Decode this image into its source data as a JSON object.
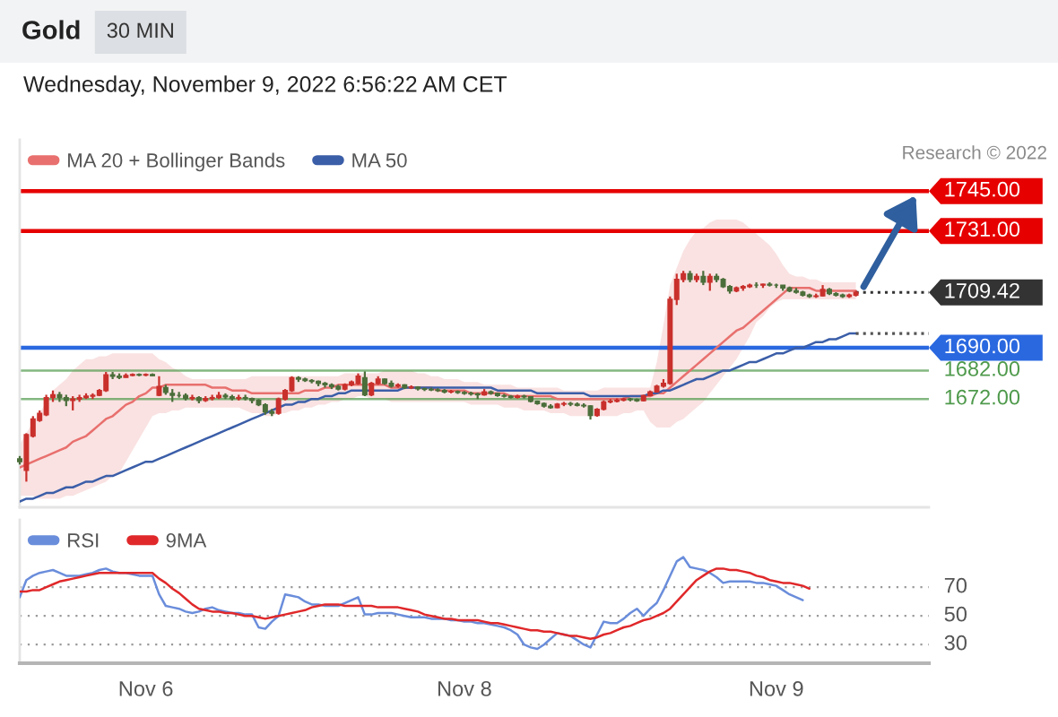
{
  "chart_data": [
    {
      "type": "candlestick",
      "title": "Gold",
      "subtitle": "Wednesday, November 9, 2022 6:56:22 AM CET",
      "annotations": [
        "30 MIN",
        "Research © 2022"
      ],
      "categories": [
        null,
        null,
        null,
        null,
        null,
        null,
        null,
        null,
        null,
        null,
        null,
        null,
        null,
        null,
        null,
        null,
        null,
        null,
        null,
        null,
        null,
        null,
        null,
        null,
        null,
        null,
        null,
        null,
        null,
        null,
        null,
        null,
        null,
        null,
        null,
        null,
        null,
        null,
        null,
        null,
        null,
        null,
        null,
        null,
        null,
        null,
        null,
        null,
        null,
        null,
        null,
        null,
        null,
        null,
        null,
        null,
        null,
        null,
        null,
        null,
        null,
        null,
        null,
        null,
        null,
        null,
        null,
        null,
        null,
        null,
        null,
        null,
        null,
        null,
        null,
        null,
        null,
        null,
        null,
        null,
        null,
        null,
        null,
        null,
        null,
        null,
        null,
        null,
        null,
        null,
        null,
        null,
        null,
        null,
        null,
        null,
        null,
        null,
        null,
        null,
        null,
        null,
        null,
        null,
        null,
        null,
        null,
        null,
        null,
        null,
        null,
        null,
        null,
        null,
        null,
        null,
        null,
        null,
        null,
        null,
        null,
        null,
        null,
        null,
        null,
        null,
        null,
        null,
        null,
        null,
        null,
        null,
        null,
        null,
        null,
        null,
        null,
        null
      ],
      "ohlc": [
        [
          1651,
          1652,
          1649,
          1650
        ],
        [
          1647,
          1660,
          1643,
          1659.5
        ],
        [
          1659,
          1666,
          1658.5,
          1665
        ],
        [
          1664.5,
          1668,
          1664,
          1667
        ],
        [
          1666.5,
          1673.5,
          1666,
          1672.5
        ],
        [
          1672.5,
          1675,
          1671,
          1673.5
        ],
        [
          1673.5,
          1674.5,
          1671,
          1672.5
        ],
        [
          1672.5,
          1673.5,
          1669.5,
          1671.5
        ],
        [
          1671.5,
          1673,
          1668,
          1672
        ],
        [
          1672,
          1673.5,
          1671,
          1672.5
        ],
        [
          1672.5,
          1674,
          1672,
          1673
        ],
        [
          1673,
          1674,
          1672,
          1673.3
        ],
        [
          1673.3,
          1675.5,
          1673,
          1675
        ],
        [
          1675,
          1681.5,
          1674.5,
          1680.5
        ],
        [
          1680.5,
          1681.5,
          1679,
          1680
        ],
        [
          1680,
          1681,
          1679,
          1679.6
        ],
        [
          1679.6,
          1681,
          1679.5,
          1680.3
        ],
        [
          1680.3,
          1681,
          1680,
          1680.6
        ],
        [
          1680.6,
          1681,
          1680,
          1680.4
        ],
        [
          1680.4,
          1681,
          1680,
          1680.6
        ],
        [
          1680.6,
          1681,
          1680,
          1680.2
        ],
        [
          1673.3,
          1680,
          1673,
          1676.4
        ],
        [
          1676,
          1677,
          1673.5,
          1674.3
        ],
        [
          1674,
          1675.5,
          1671,
          1673.3
        ],
        [
          1673.3,
          1674.5,
          1672.5,
          1673.3
        ],
        [
          1673.3,
          1674,
          1671.5,
          1672.2
        ],
        [
          1672.2,
          1673.5,
          1671.5,
          1672.5
        ],
        [
          1672.5,
          1673,
          1670.5,
          1671.5
        ],
        [
          1671.5,
          1673,
          1671,
          1672.2
        ],
        [
          1672.2,
          1673.5,
          1671.5,
          1672.5
        ],
        [
          1672.5,
          1674.5,
          1672,
          1673.3
        ],
        [
          1673.3,
          1674,
          1672,
          1672.8
        ],
        [
          1672.8,
          1673.5,
          1671.5,
          1672.2
        ],
        [
          1672.2,
          1673.5,
          1671.5,
          1672.5
        ],
        [
          1672.5,
          1673.5,
          1671.5,
          1672.2
        ],
        [
          1672.2,
          1672.5,
          1670.5,
          1671.5
        ],
        [
          1671.5,
          1672,
          1669.5,
          1670
        ],
        [
          1670,
          1670.5,
          1666.5,
          1667.5
        ],
        [
          1667.5,
          1668.5,
          1666,
          1667
        ],
        [
          1667,
          1672.5,
          1666.5,
          1672
        ],
        [
          1672,
          1675.5,
          1671.5,
          1675
        ],
        [
          1675,
          1680,
          1674.5,
          1679.5
        ],
        [
          1679.5,
          1680,
          1678,
          1679
        ],
        [
          1679,
          1679.5,
          1678,
          1678.5
        ],
        [
          1678.5,
          1679,
          1677.5,
          1678.2
        ],
        [
          1678.2,
          1678.5,
          1676.5,
          1677.5
        ],
        [
          1677.5,
          1678,
          1676,
          1677
        ],
        [
          1677,
          1677.5,
          1675.5,
          1676.4
        ],
        [
          1676.4,
          1677,
          1675,
          1675.5
        ],
        [
          1675.5,
          1677.5,
          1675,
          1677
        ],
        [
          1677,
          1678.5,
          1676.5,
          1678
        ],
        [
          1677.5,
          1681,
          1677,
          1680
        ],
        [
          1679.5,
          1681.7,
          1673,
          1673.5
        ],
        [
          1673.5,
          1678,
          1673,
          1677.5
        ],
        [
          1677.5,
          1680,
          1677,
          1679
        ],
        [
          1679,
          1679.2,
          1677,
          1677.5
        ],
        [
          1677.5,
          1678.5,
          1676,
          1676.5
        ],
        [
          1676.5,
          1677.5,
          1676,
          1677
        ],
        [
          1677,
          1677.2,
          1675.5,
          1676
        ],
        [
          1676,
          1676.8,
          1675.5,
          1676.2
        ],
        [
          1676.2,
          1676.5,
          1675,
          1675.6
        ],
        [
          1675.6,
          1676,
          1674.8,
          1675.4
        ],
        [
          1675.4,
          1676,
          1674.8,
          1675.2
        ],
        [
          1675.2,
          1675.8,
          1674.5,
          1675
        ],
        [
          1675,
          1675.5,
          1674,
          1674.5
        ],
        [
          1674.5,
          1675.2,
          1674,
          1674.6
        ],
        [
          1674.6,
          1675,
          1673.8,
          1674.3
        ],
        [
          1674.3,
          1674.8,
          1673.5,
          1674
        ],
        [
          1674,
          1674.6,
          1673.2,
          1673.8
        ],
        [
          1673.8,
          1674.2,
          1672,
          1673.5
        ],
        [
          1673.5,
          1675.5,
          1673.2,
          1674.5
        ],
        [
          1674.5,
          1675,
          1673.5,
          1674
        ],
        [
          1674,
          1674.2,
          1672.8,
          1673.2
        ],
        [
          1673.2,
          1673.8,
          1672.5,
          1673
        ],
        [
          1673,
          1673.4,
          1672.2,
          1672.6
        ],
        [
          1672.6,
          1673.5,
          1672.2,
          1673
        ],
        [
          1673,
          1673.5,
          1672.2,
          1672.8
        ],
        [
          1672.8,
          1673,
          1670.8,
          1671.2
        ],
        [
          1671.2,
          1671.5,
          1670,
          1670.4
        ],
        [
          1670.4,
          1670.8,
          1669,
          1669.5
        ],
        [
          1669.5,
          1670.2,
          1668.6,
          1669
        ],
        [
          1669,
          1670.6,
          1668.8,
          1670.2
        ],
        [
          1670.2,
          1671,
          1669.5,
          1670.4
        ],
        [
          1670.4,
          1671,
          1669.5,
          1670.2
        ],
        [
          1670.2,
          1670.8,
          1669.4,
          1669.8
        ],
        [
          1669.8,
          1670.5,
          1669,
          1669.6
        ],
        [
          1669.6,
          1669.8,
          1664.8,
          1666.2
        ],
        [
          1666.2,
          1668.8,
          1665.8,
          1668.4
        ],
        [
          1668.4,
          1671.5,
          1668,
          1671
        ],
        [
          1671,
          1672,
          1670.5,
          1671.2
        ],
        [
          1671.2,
          1672.2,
          1670.8,
          1671.6
        ],
        [
          1671.6,
          1672.5,
          1671.2,
          1672
        ],
        [
          1672,
          1672.4,
          1671.2,
          1671.8
        ],
        [
          1671.8,
          1672.2,
          1671,
          1671.4
        ],
        [
          1671.4,
          1673.5,
          1671.2,
          1673.2
        ],
        [
          1673.2,
          1675,
          1673,
          1674.5
        ],
        [
          1674.5,
          1677,
          1674.2,
          1676.5
        ],
        [
          1676.5,
          1679,
          1676,
          1677.5
        ],
        [
          1677.5,
          1708,
          1677,
          1707
        ],
        [
          1707,
          1716,
          1705,
          1714
        ],
        [
          1714,
          1717,
          1713,
          1716
        ],
        [
          1716,
          1717,
          1713,
          1714
        ],
        [
          1714,
          1716,
          1713,
          1715
        ],
        [
          1715,
          1717,
          1712,
          1713
        ],
        [
          1713,
          1716,
          1710,
          1715
        ],
        [
          1715,
          1716,
          1713,
          1714
        ],
        [
          1714,
          1714.5,
          1711,
          1711.5
        ],
        [
          1711.5,
          1712,
          1709,
          1710
        ],
        [
          1710,
          1711.5,
          1709.5,
          1711
        ],
        [
          1711,
          1712,
          1710,
          1711.5
        ],
        [
          1711.5,
          1712.5,
          1711,
          1712
        ],
        [
          1712,
          1713,
          1711,
          1712
        ],
        [
          1712,
          1712.5,
          1711,
          1712.3
        ],
        [
          1712.3,
          1713,
          1711.5,
          1712
        ],
        [
          1712,
          1712.5,
          1711,
          1712
        ],
        [
          1712,
          1712,
          1710,
          1711
        ],
        [
          1711,
          1711.5,
          1709.5,
          1710
        ],
        [
          1710,
          1711,
          1709,
          1709.5
        ],
        [
          1709.5,
          1710,
          1708,
          1708.5
        ],
        [
          1708.5,
          1709,
          1707.5,
          1708
        ],
        [
          1708,
          1709,
          1707.5,
          1708.2
        ],
        [
          1708.2,
          1712,
          1708,
          1710.5
        ],
        [
          1710.5,
          1711,
          1708.5,
          1709
        ],
        [
          1709,
          1709.5,
          1708,
          1708.5
        ],
        [
          1708.5,
          1709,
          1707.5,
          1708
        ],
        [
          1708,
          1709,
          1707.5,
          1708.5
        ],
        [
          1708.5,
          1710,
          1708,
          1709.42
        ],
        null,
        null,
        null,
        null,
        null,
        null,
        null,
        null,
        null,
        null,
        null
      ],
      "colors": [
        "#4b6e3a",
        "#c9302c",
        "#c9302c",
        "#c9302c",
        "#c9302c",
        "#c9302c",
        "#4b6e3a",
        "#4b6e3a",
        "#c9302c",
        "#c9302c",
        "#c9302c",
        "#c9302c",
        "#c9302c",
        "#c9302c",
        "#4b6e3a",
        "#4b6e3a",
        "#c9302c",
        "#c9302c",
        "#4b6e3a",
        "#c9302c",
        "#4b6e3a",
        "#c9302c",
        "#4b6e3a",
        "#4b6e3a",
        "#4b6e3a",
        "#4b6e3a",
        "#c9302c",
        "#4b6e3a",
        "#c9302c",
        "#c9302c",
        "#c9302c",
        "#4b6e3a",
        "#4b6e3a",
        "#c9302c",
        "#4b6e3a",
        "#4b6e3a",
        "#4b6e3a",
        "#4b6e3a",
        "#4b6e3a",
        "#c9302c",
        "#c9302c",
        "#c9302c",
        "#4b6e3a",
        "#4b6e3a",
        "#4b6e3a",
        "#4b6e3a",
        "#4b6e3a",
        "#4b6e3a",
        "#4b6e3a",
        "#c9302c",
        "#c9302c",
        "#c9302c",
        "#4b6e3a",
        "#c9302c",
        "#c9302c",
        "#4b6e3a",
        "#4b6e3a",
        "#c9302c",
        "#4b6e3a",
        "#c9302c",
        "#4b6e3a",
        "#4b6e3a",
        "#4b6e3a",
        "#4b6e3a",
        "#4b6e3a",
        "#c9302c",
        "#4b6e3a",
        "#4b6e3a",
        "#4b6e3a",
        "#4b6e3a",
        "#c9302c",
        "#4b6e3a",
        "#4b6e3a",
        "#4b6e3a",
        "#4b6e3a",
        "#c9302c",
        "#4b6e3a",
        "#4b6e3a",
        "#4b6e3a",
        "#4b6e3a",
        "#4b6e3a",
        "#c9302c",
        "#c9302c",
        "#4b6e3a",
        "#4b6e3a",
        "#4b6e3a",
        "#4b6e3a",
        "#c9302c",
        "#c9302c",
        "#c9302c",
        "#c9302c",
        "#c9302c",
        "#4b6e3a",
        "#4b6e3a",
        "#c9302c",
        "#c9302c",
        "#c9302c",
        "#c9302c",
        "#c9302c",
        "#c9302c",
        "#c9302c",
        "#4b6e3a",
        "#c9302c",
        "#4b6e3a",
        "#c9302c",
        "#4b6e3a",
        "#4b6e3a",
        "#4b6e3a",
        "#c9302c",
        "#c9302c",
        "#c9302c",
        "#4b6e3a",
        "#c9302c",
        "#4b6e3a",
        "#4b6e3a",
        "#4b6e3a",
        "#4b6e3a",
        "#4b6e3a",
        "#4b6e3a",
        "#4b6e3a",
        "#c9302c",
        "#c9302c",
        "#4b6e3a",
        "#4b6e3a",
        "#4b6e3a",
        "#c9302c",
        "#c9302c",
        null,
        null,
        null,
        null,
        null,
        null,
        null,
        null,
        null,
        null,
        null
      ],
      "series": [
        {
          "name": "MA 20 + Bollinger Bands",
          "type": "line",
          "color": "#e8706e",
          "values": [
            1648,
            1649,
            1650,
            1651,
            1652,
            1653,
            1654,
            1655,
            1657,
            1658,
            1659,
            1661,
            1663,
            1665,
            1666,
            1668,
            1670,
            1671,
            1673,
            1674,
            1676,
            1676,
            1677,
            1677,
            1677,
            1677,
            1677,
            1677,
            1677,
            1676,
            1676,
            1676,
            1675,
            1675,
            1675,
            1674,
            1674,
            1674,
            1674,
            1674,
            1674,
            1674,
            1674,
            1675,
            1675,
            1675,
            1676,
            1676,
            1677,
            1677,
            1677,
            1677,
            1677,
            1677,
            1677,
            1677,
            1676,
            1676,
            1676,
            1676,
            1676,
            1676,
            1676,
            1675,
            1675,
            1675,
            1675,
            1675,
            1674,
            1674,
            1674,
            1674,
            1674,
            1674,
            1673,
            1673,
            1673,
            1673,
            1673,
            1673,
            1673,
            1672,
            1672,
            1672,
            1672,
            1672,
            1672,
            1672,
            1672,
            1672,
            1672,
            1672,
            1673,
            1673,
            1673,
            1673,
            1674,
            1674,
            1676,
            1678,
            1680,
            1682,
            1684,
            1686,
            1688,
            1690,
            1692,
            1694,
            1696,
            1697,
            1699,
            1701,
            1703,
            1705,
            1707,
            1709,
            1711,
            1711,
            1711,
            1711,
            1710,
            1710,
            1710,
            1710,
            1710,
            1710,
            1710,
            null,
            null,
            null,
            null,
            null,
            null,
            null,
            null,
            null,
            null,
            null
          ],
          "upper": [
            1656,
            1660,
            1664,
            1667,
            1671,
            1675,
            1677,
            1679,
            1682,
            1684,
            1686,
            1686,
            1687,
            1687,
            1688,
            1688,
            1688,
            1688,
            1688,
            1688,
            1688,
            1686,
            1685,
            1683,
            1682,
            1680,
            1679,
            1679,
            1679,
            1679,
            1679,
            1679,
            1679,
            1679,
            1679,
            1680,
            1680,
            1680,
            1680,
            1680,
            1680,
            1680,
            1680,
            1680,
            1680,
            1680,
            1680,
            1680,
            1680,
            1681,
            1681,
            1681,
            1681,
            1681,
            1681,
            1682,
            1682,
            1682,
            1682,
            1682,
            1681,
            1681,
            1680,
            1680,
            1679,
            1679,
            1679,
            1678,
            1678,
            1678,
            1677,
            1677,
            1677,
            1677,
            1677,
            1676,
            1676,
            1676,
            1676,
            1676,
            1676,
            1676,
            1675,
            1675,
            1675,
            1675,
            1675,
            1675,
            1676,
            1676,
            1676,
            1676,
            1676,
            1676,
            1676,
            1676,
            1685,
            1698,
            1712,
            1718,
            1724,
            1728,
            1731,
            1732,
            1734,
            1735,
            1735,
            1735,
            1735,
            1734,
            1732,
            1730,
            1728,
            1726,
            1723,
            1719,
            1716,
            1715,
            1715,
            1714,
            1714,
            1713,
            1713,
            1713,
            1713,
            1713,
            1713,
            null,
            null,
            null,
            null,
            null,
            null,
            null,
            null,
            null,
            null,
            null
          ],
          "lower": [
            1638,
            1638,
            1638,
            1637,
            1637,
            1637,
            1637,
            1638,
            1638,
            1639,
            1640,
            1641,
            1642,
            1643,
            1645,
            1646,
            1650,
            1654,
            1658,
            1662,
            1666,
            1667,
            1667,
            1668,
            1668,
            1669,
            1669,
            1669,
            1669,
            1669,
            1669,
            1669,
            1669,
            1669,
            1668,
            1667,
            1667,
            1666,
            1666,
            1667,
            1667,
            1668,
            1668,
            1669,
            1669,
            1670,
            1670,
            1671,
            1671,
            1672,
            1672,
            1673,
            1673,
            1672,
            1672,
            1672,
            1671,
            1671,
            1671,
            1671,
            1671,
            1671,
            1671,
            1671,
            1671,
            1671,
            1671,
            1671,
            1670,
            1670,
            1670,
            1670,
            1670,
            1669,
            1669,
            1669,
            1668,
            1668,
            1668,
            1668,
            1667,
            1667,
            1667,
            1666,
            1666,
            1666,
            1666,
            1666,
            1666,
            1666,
            1666,
            1667,
            1667,
            1668,
            1668,
            1664,
            1662,
            1662,
            1662,
            1664,
            1665,
            1667,
            1669,
            1671,
            1674,
            1677,
            1680,
            1683,
            1686,
            1690,
            1694,
            1699,
            1701,
            1704,
            1706,
            1707,
            1707,
            1707,
            1707,
            1707,
            1707,
            1707,
            1707,
            1707,
            1707,
            1707,
            1707,
            null,
            null,
            null,
            null,
            null,
            null,
            null,
            null,
            null,
            null,
            null
          ]
        },
        {
          "name": "MA 50",
          "type": "line",
          "color": "#3b5ea8",
          "values": [
            1636,
            1637,
            1637,
            1638,
            1639,
            1639,
            1640,
            1641,
            1641,
            1642,
            1643,
            1643,
            1644,
            1645,
            1645,
            1646,
            1647,
            1648,
            1649,
            1650,
            1650,
            1651,
            1652,
            1653,
            1654,
            1655,
            1656,
            1657,
            1658,
            1659,
            1660,
            1661,
            1662,
            1663,
            1664,
            1665,
            1666,
            1667,
            1668,
            1669,
            1670,
            1670,
            1671,
            1671,
            1672,
            1672,
            1673,
            1673,
            1674,
            1674,
            1675,
            1675,
            1675,
            1675,
            1675,
            1675,
            1675,
            1675,
            1676,
            1676,
            1676,
            1676,
            1676,
            1676,
            1676,
            1676,
            1676,
            1676,
            1676,
            1676,
            1676,
            1676,
            1675,
            1675,
            1675,
            1675,
            1675,
            1675,
            1674,
            1674,
            1674,
            1674,
            1674,
            1674,
            1674,
            1674,
            1673,
            1673,
            1673,
            1673,
            1673,
            1673,
            1673,
            1673,
            1673,
            1674,
            1674,
            1675,
            1675,
            1676,
            1677,
            1678,
            1679,
            1679,
            1680,
            1681,
            1682,
            1682,
            1683,
            1684,
            1685,
            1685,
            1686,
            1687,
            1688,
            1688,
            1689,
            1690,
            1690,
            1691,
            1692,
            1692,
            1693,
            1693,
            1694,
            1695,
            1695,
            null,
            null,
            null,
            null,
            null,
            null,
            null,
            null,
            null,
            null,
            null
          ]
        },
        {
          "type": "line",
          "color": "#333333",
          "line_style": "dotted",
          "values": [
            null,
            null,
            null,
            null,
            null,
            null,
            null,
            null,
            null,
            null,
            null,
            null,
            null,
            null,
            null,
            null,
            null,
            null,
            null,
            null,
            null,
            null,
            null,
            null,
            null,
            null,
            null,
            null,
            null,
            null,
            null,
            null,
            null,
            null,
            null,
            null,
            null,
            null,
            null,
            null,
            null,
            null,
            null,
            null,
            null,
            null,
            null,
            null,
            null,
            null,
            null,
            null,
            null,
            null,
            null,
            null,
            null,
            null,
            null,
            null,
            null,
            null,
            null,
            null,
            null,
            null,
            null,
            null,
            null,
            null,
            null,
            null,
            null,
            null,
            null,
            null,
            null,
            null,
            null,
            null,
            null,
            null,
            null,
            null,
            null,
            null,
            null,
            null,
            null,
            null,
            null,
            null,
            null,
            null,
            null,
            null,
            null,
            null,
            null,
            null,
            null,
            null,
            null,
            null,
            null,
            null,
            null,
            null,
            null,
            null,
            null,
            null,
            null,
            null,
            null,
            null,
            null,
            null,
            null,
            null,
            null,
            null,
            null,
            null,
            null,
            null,
            1709.42,
            1709.42,
            1709.42,
            1709.42,
            1709.42,
            1709.42,
            1709.42,
            1709.42,
            1709.42,
            1709.42,
            1709.42,
            1709.42
          ]
        },
        {
          "type": "line",
          "color": "#555555",
          "line_style": "dotted",
          "values": [
            null,
            null,
            null,
            null,
            null,
            null,
            null,
            null,
            null,
            null,
            null,
            null,
            null,
            null,
            null,
            null,
            null,
            null,
            null,
            null,
            null,
            null,
            null,
            null,
            null,
            null,
            null,
            null,
            null,
            null,
            null,
            null,
            null,
            null,
            null,
            null,
            null,
            null,
            null,
            null,
            null,
            null,
            null,
            null,
            null,
            null,
            null,
            null,
            null,
            null,
            null,
            null,
            null,
            null,
            null,
            null,
            null,
            null,
            null,
            null,
            null,
            null,
            null,
            null,
            null,
            null,
            null,
            null,
            null,
            null,
            null,
            null,
            null,
            null,
            null,
            null,
            null,
            null,
            null,
            null,
            null,
            null,
            null,
            null,
            null,
            null,
            null,
            null,
            null,
            null,
            null,
            null,
            null,
            null,
            null,
            null,
            null,
            null,
            null,
            null,
            null,
            null,
            null,
            null,
            null,
            null,
            null,
            null,
            null,
            null,
            null,
            null,
            null,
            null,
            null,
            null,
            null,
            null,
            null,
            null,
            null,
            null,
            null,
            null,
            null,
            null,
            1695,
            1695,
            1695,
            1695,
            1695,
            1695,
            1695,
            1695,
            1695,
            1695,
            1695,
            1695
          ]
        }
      ],
      "ref_lines": [
        {
          "axis": "y",
          "value": 1745,
          "color": "#e60000"
        },
        {
          "axis": "y",
          "value": 1731,
          "color": "#e60000"
        },
        {
          "axis": "y",
          "value": 1690,
          "color": "#2a68e0"
        },
        {
          "axis": "y",
          "value": 1682,
          "color": "#4f9a4c"
        },
        {
          "axis": "y",
          "value": 1672,
          "color": "#4f9a4c"
        }
      ],
      "ylim": [
        1634,
        1763
      ],
      "yticks": [
        {
          "value": 1745,
          "label": "1745.00"
        },
        {
          "value": 1731,
          "label": "1731.00"
        },
        {
          "value": 1709.42,
          "label": "1709.42"
        },
        {
          "value": 1690,
          "label": "1690.00"
        },
        {
          "value": 1682,
          "label": "1682.00"
        },
        {
          "value": 1672,
          "label": "1672.00"
        }
      ],
      "tick_labels": "y",
      "legend": "top left"
    },
    {
      "type": "line",
      "categories": [
        null,
        null,
        null,
        null,
        null,
        null,
        null,
        null,
        null,
        null,
        null,
        null,
        null,
        null,
        null,
        null,
        null,
        null,
        null,
        "Nov 6",
        null,
        null,
        null,
        null,
        null,
        null,
        null,
        null,
        null,
        null,
        null,
        null,
        null,
        null,
        null,
        null,
        null,
        null,
        null,
        null,
        null,
        null,
        null,
        null,
        null,
        null,
        null,
        null,
        null,
        null,
        null,
        null,
        null,
        null,
        null,
        null,
        null,
        null,
        null,
        null,
        null,
        null,
        null,
        null,
        null,
        null,
        null,
        "Nov 8",
        null,
        null,
        null,
        null,
        null,
        null,
        null,
        null,
        null,
        null,
        null,
        null,
        null,
        null,
        null,
        null,
        null,
        null,
        null,
        null,
        null,
        null,
        null,
        null,
        null,
        null,
        null,
        null,
        null,
        null,
        null,
        null,
        null,
        null,
        null,
        null,
        null,
        null,
        null,
        null,
        null,
        null,
        null,
        null,
        null,
        null,
        "Nov 9",
        null,
        null,
        null,
        null,
        null,
        null,
        null,
        null,
        null,
        null,
        null,
        null,
        null,
        null,
        null,
        null,
        null,
        null,
        null,
        null,
        null,
        null,
        null
      ],
      "series": [
        {
          "name": "RSI",
          "color": "#6a8ddb",
          "values": [
            63,
            75,
            78,
            80,
            81,
            82,
            80,
            78,
            78,
            78,
            79,
            80,
            82,
            83,
            81,
            80,
            80,
            79,
            78,
            78,
            78,
            65,
            57,
            56,
            55,
            53,
            52,
            53,
            55,
            56,
            54,
            53,
            52,
            52,
            51,
            51,
            42,
            41,
            46,
            50,
            65,
            64,
            63,
            60,
            58,
            58,
            57,
            57,
            57,
            59,
            61,
            63,
            51,
            51,
            52,
            52,
            52,
            51,
            50,
            49,
            49,
            49,
            48,
            48,
            48,
            47,
            47,
            46,
            46,
            45,
            45,
            44,
            43,
            42,
            40,
            37,
            30,
            28,
            27,
            30,
            34,
            38,
            37,
            36,
            33,
            30,
            28,
            37,
            46,
            45,
            45,
            48,
            52,
            55,
            50,
            55,
            59,
            68,
            78,
            88,
            91,
            84,
            83,
            82,
            80,
            77,
            73,
            74,
            74,
            74,
            74,
            73,
            73,
            72,
            71,
            68,
            65,
            63,
            61,
            null,
            null,
            null,
            null,
            null,
            null,
            null,
            null,
            null,
            null,
            null,
            null,
            null,
            null,
            null,
            null,
            null,
            null,
            null
          ]
        },
        {
          "name": "9MA",
          "color": "#e0282a",
          "values": [
            67,
            67,
            68,
            68,
            70,
            72,
            74,
            75,
            76,
            77,
            78,
            79,
            80,
            80,
            80,
            80,
            80,
            80,
            80,
            80,
            80,
            76,
            73,
            69,
            66,
            62,
            58,
            55,
            54,
            53,
            53,
            52,
            52,
            51,
            50,
            50,
            49,
            48,
            49,
            50,
            51,
            52,
            53,
            54,
            56,
            57,
            58,
            58,
            58,
            57,
            57,
            57,
            57,
            57,
            56,
            56,
            56,
            56,
            55,
            54,
            53,
            51,
            50,
            49,
            48,
            48,
            47,
            47,
            47,
            47,
            46,
            45,
            45,
            44,
            43,
            42,
            41,
            40,
            40,
            39,
            39,
            38,
            37,
            36,
            36,
            35,
            34,
            35,
            37,
            38,
            40,
            42,
            43,
            45,
            47,
            48,
            50,
            52,
            55,
            60,
            65,
            70,
            75,
            78,
            81,
            83,
            83,
            82,
            82,
            81,
            80,
            78,
            77,
            75,
            74,
            73,
            73,
            72,
            71,
            69,
            null,
            null,
            null,
            null,
            null,
            null,
            null,
            null,
            null,
            null,
            null,
            null,
            null,
            null,
            null,
            null,
            null,
            null
          ]
        }
      ],
      "ylim": [
        17,
        117
      ],
      "yticks": [
        70,
        50,
        30
      ],
      "grid": "y",
      "legend": "top left"
    }
  ]
}
